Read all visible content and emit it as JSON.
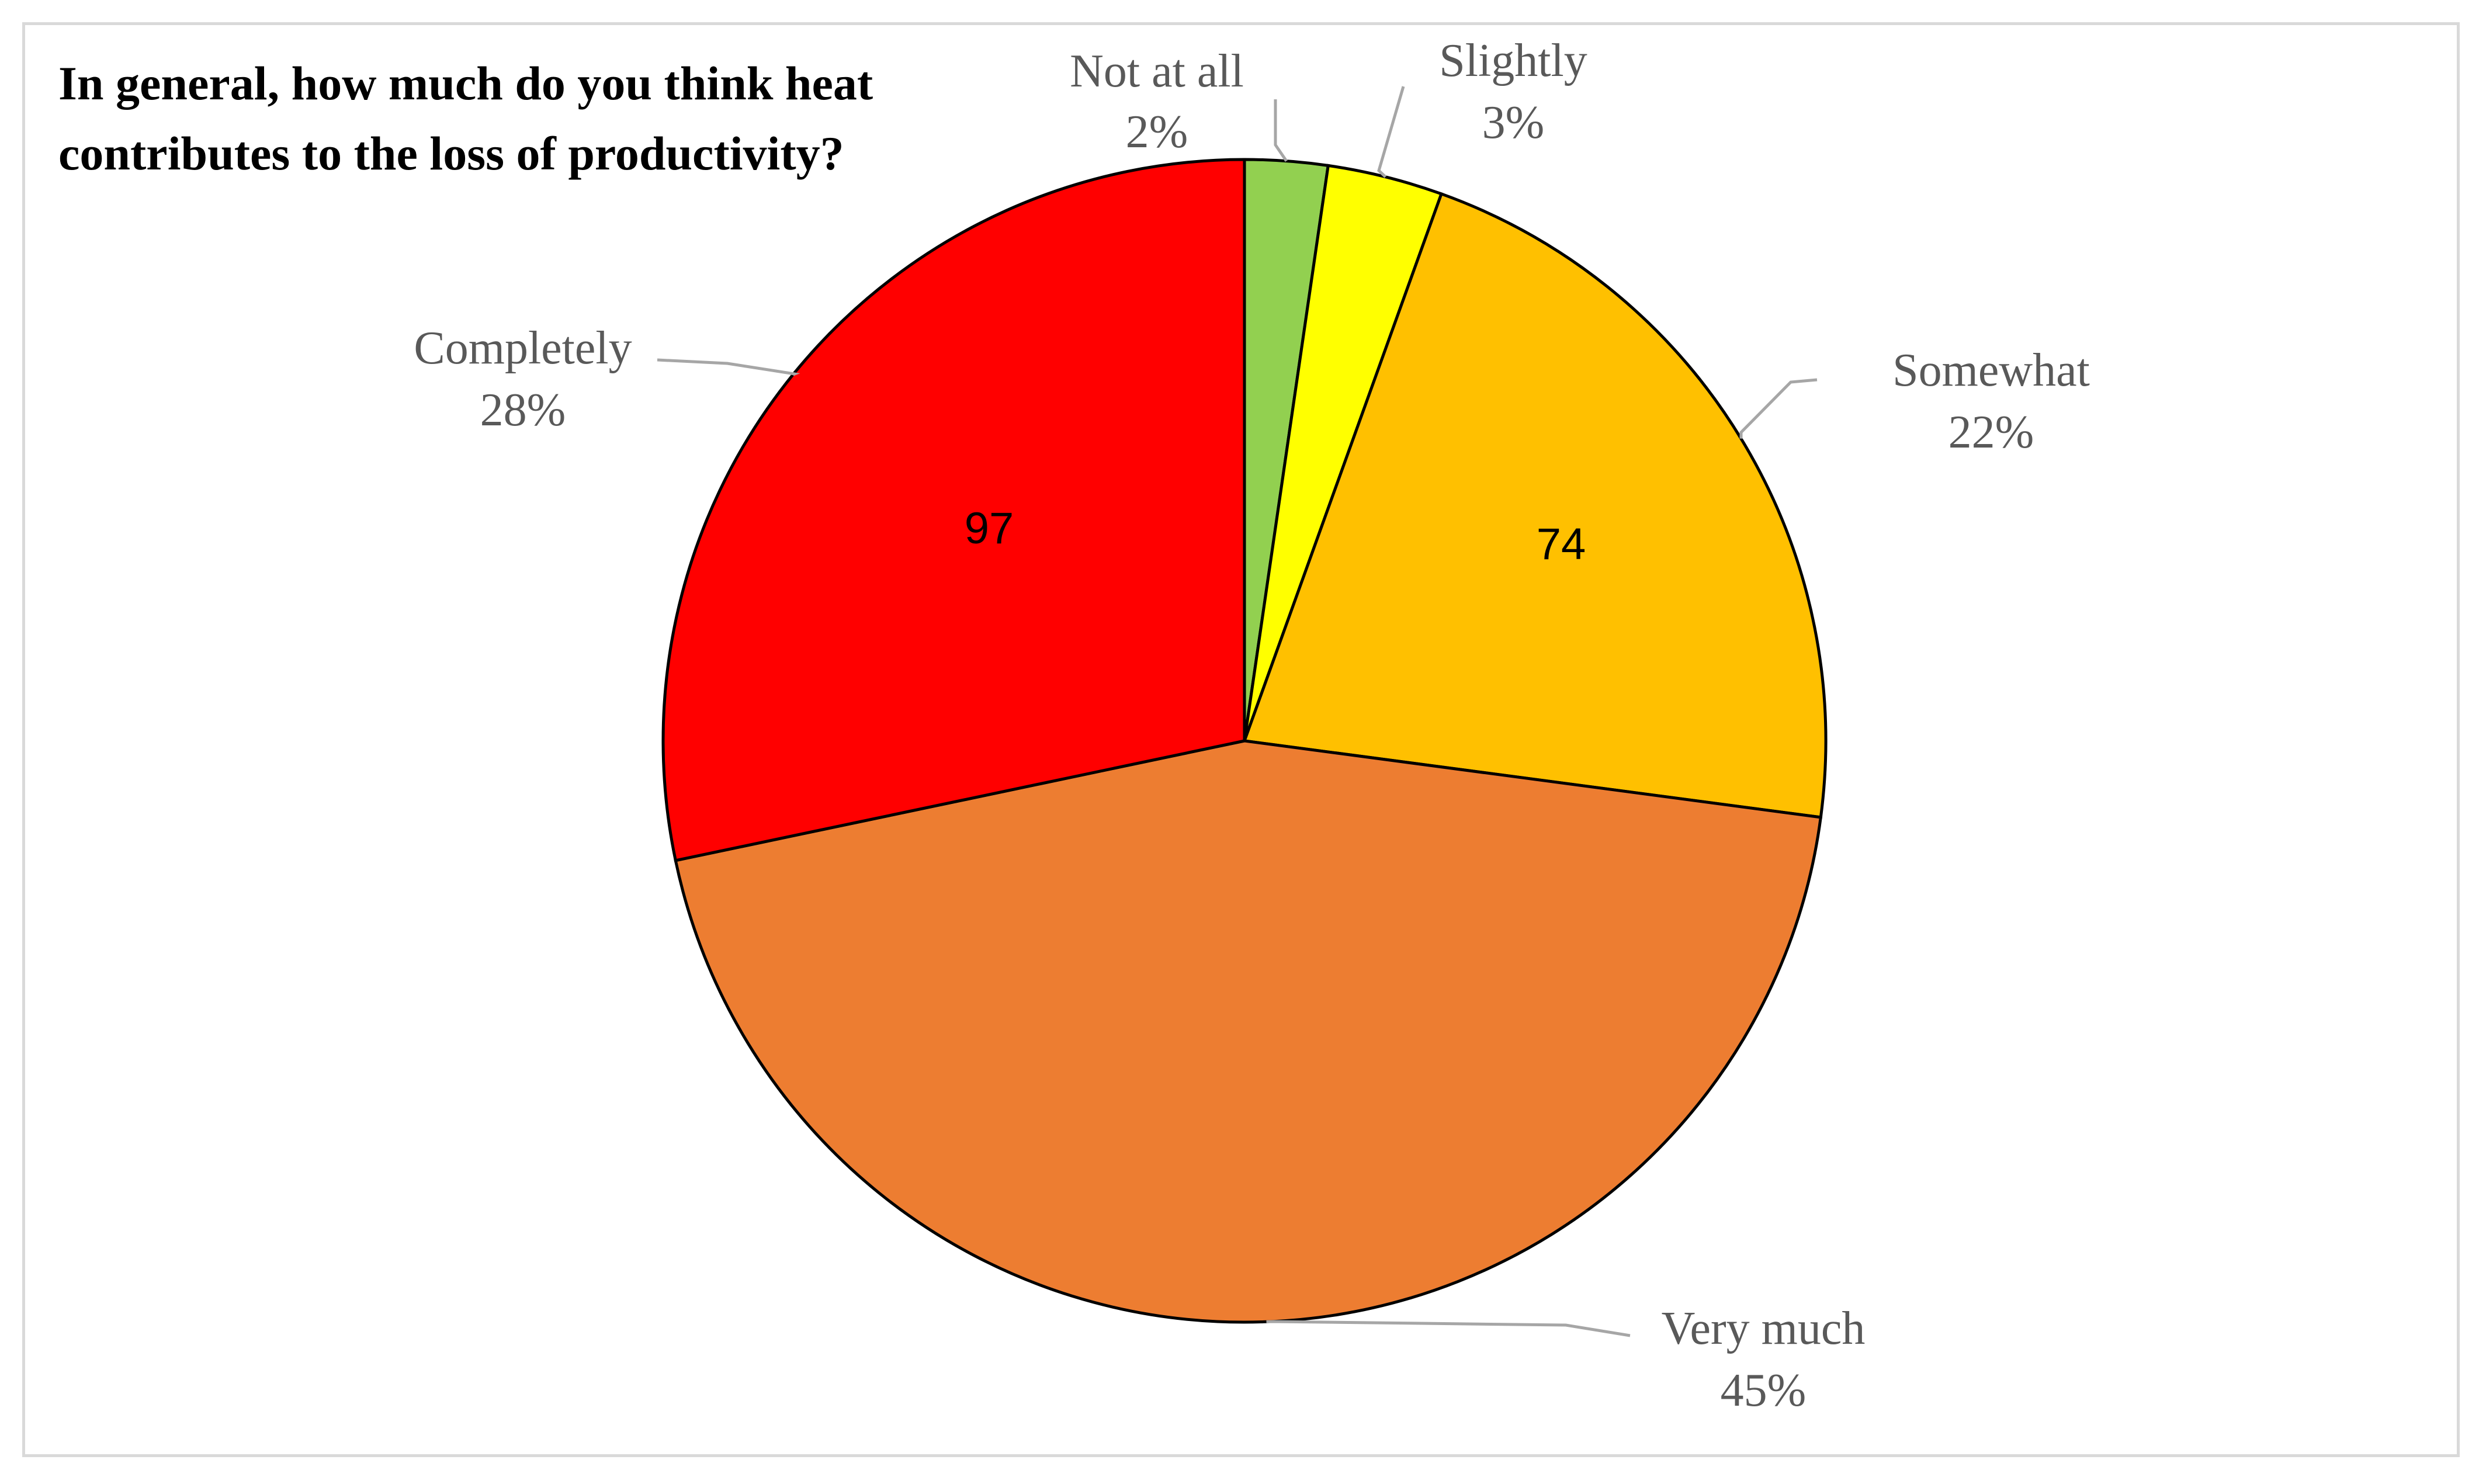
{
  "chart_data": {
    "type": "pie",
    "title_lines": [
      "In general, how much  do you think heat",
      "contributes to the loss of productivity?"
    ],
    "slices": [
      {
        "label": "Not at all",
        "percent_label": "2%",
        "value": 2.3,
        "color": "#92d050",
        "count_label": ""
      },
      {
        "label": "Slightly",
        "percent_label": "3%",
        "value": 3.2,
        "color": "#ffff00",
        "count_label": ""
      },
      {
        "label": "Somewhat",
        "percent_label": "22%",
        "value": 21.6,
        "color": "#ffc000",
        "count_label": "74"
      },
      {
        "label": "Very much",
        "percent_label": "45%",
        "value": 44.6,
        "color": "#ed7d31",
        "count_label": ""
      },
      {
        "label": "Completely",
        "percent_label": "28%",
        "value": 28.3,
        "color": "#ff0000",
        "count_label": "97"
      }
    ],
    "start_angle": "12 o'clock",
    "direction": "clockwise",
    "legend": "none"
  }
}
